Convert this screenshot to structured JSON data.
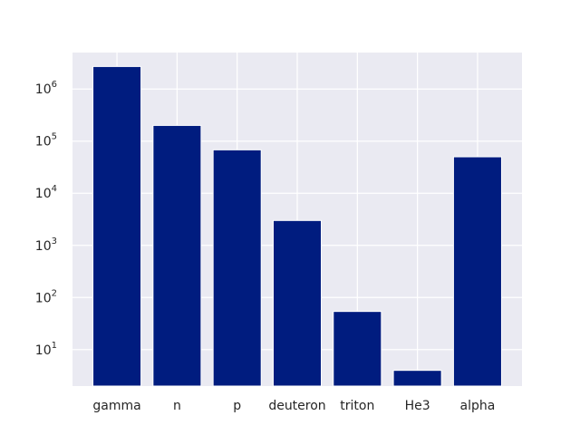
{
  "chart_data": {
    "type": "bar",
    "categories": [
      "gamma",
      "n",
      "p",
      "deuteron",
      "triton",
      "He3",
      "alpha"
    ],
    "values": [
      2700000,
      200000,
      68000,
      3000,
      54,
      4,
      50000
    ],
    "title": "",
    "xlabel": "",
    "ylabel": "",
    "yscale": "log",
    "ylim": [
      2,
      5000000
    ],
    "yticks": [
      {
        "base": "10",
        "exp": "1",
        "value": 10
      },
      {
        "base": "10",
        "exp": "2",
        "value": 100
      },
      {
        "base": "10",
        "exp": "3",
        "value": 1000
      },
      {
        "base": "10",
        "exp": "4",
        "value": 10000
      },
      {
        "base": "10",
        "exp": "5",
        "value": 100000
      },
      {
        "base": "10",
        "exp": "6",
        "value": 1000000
      }
    ],
    "grid": true,
    "bar_color": "#001c7f",
    "background_color": "#eaeaf2",
    "grid_color": "#ffffff"
  }
}
